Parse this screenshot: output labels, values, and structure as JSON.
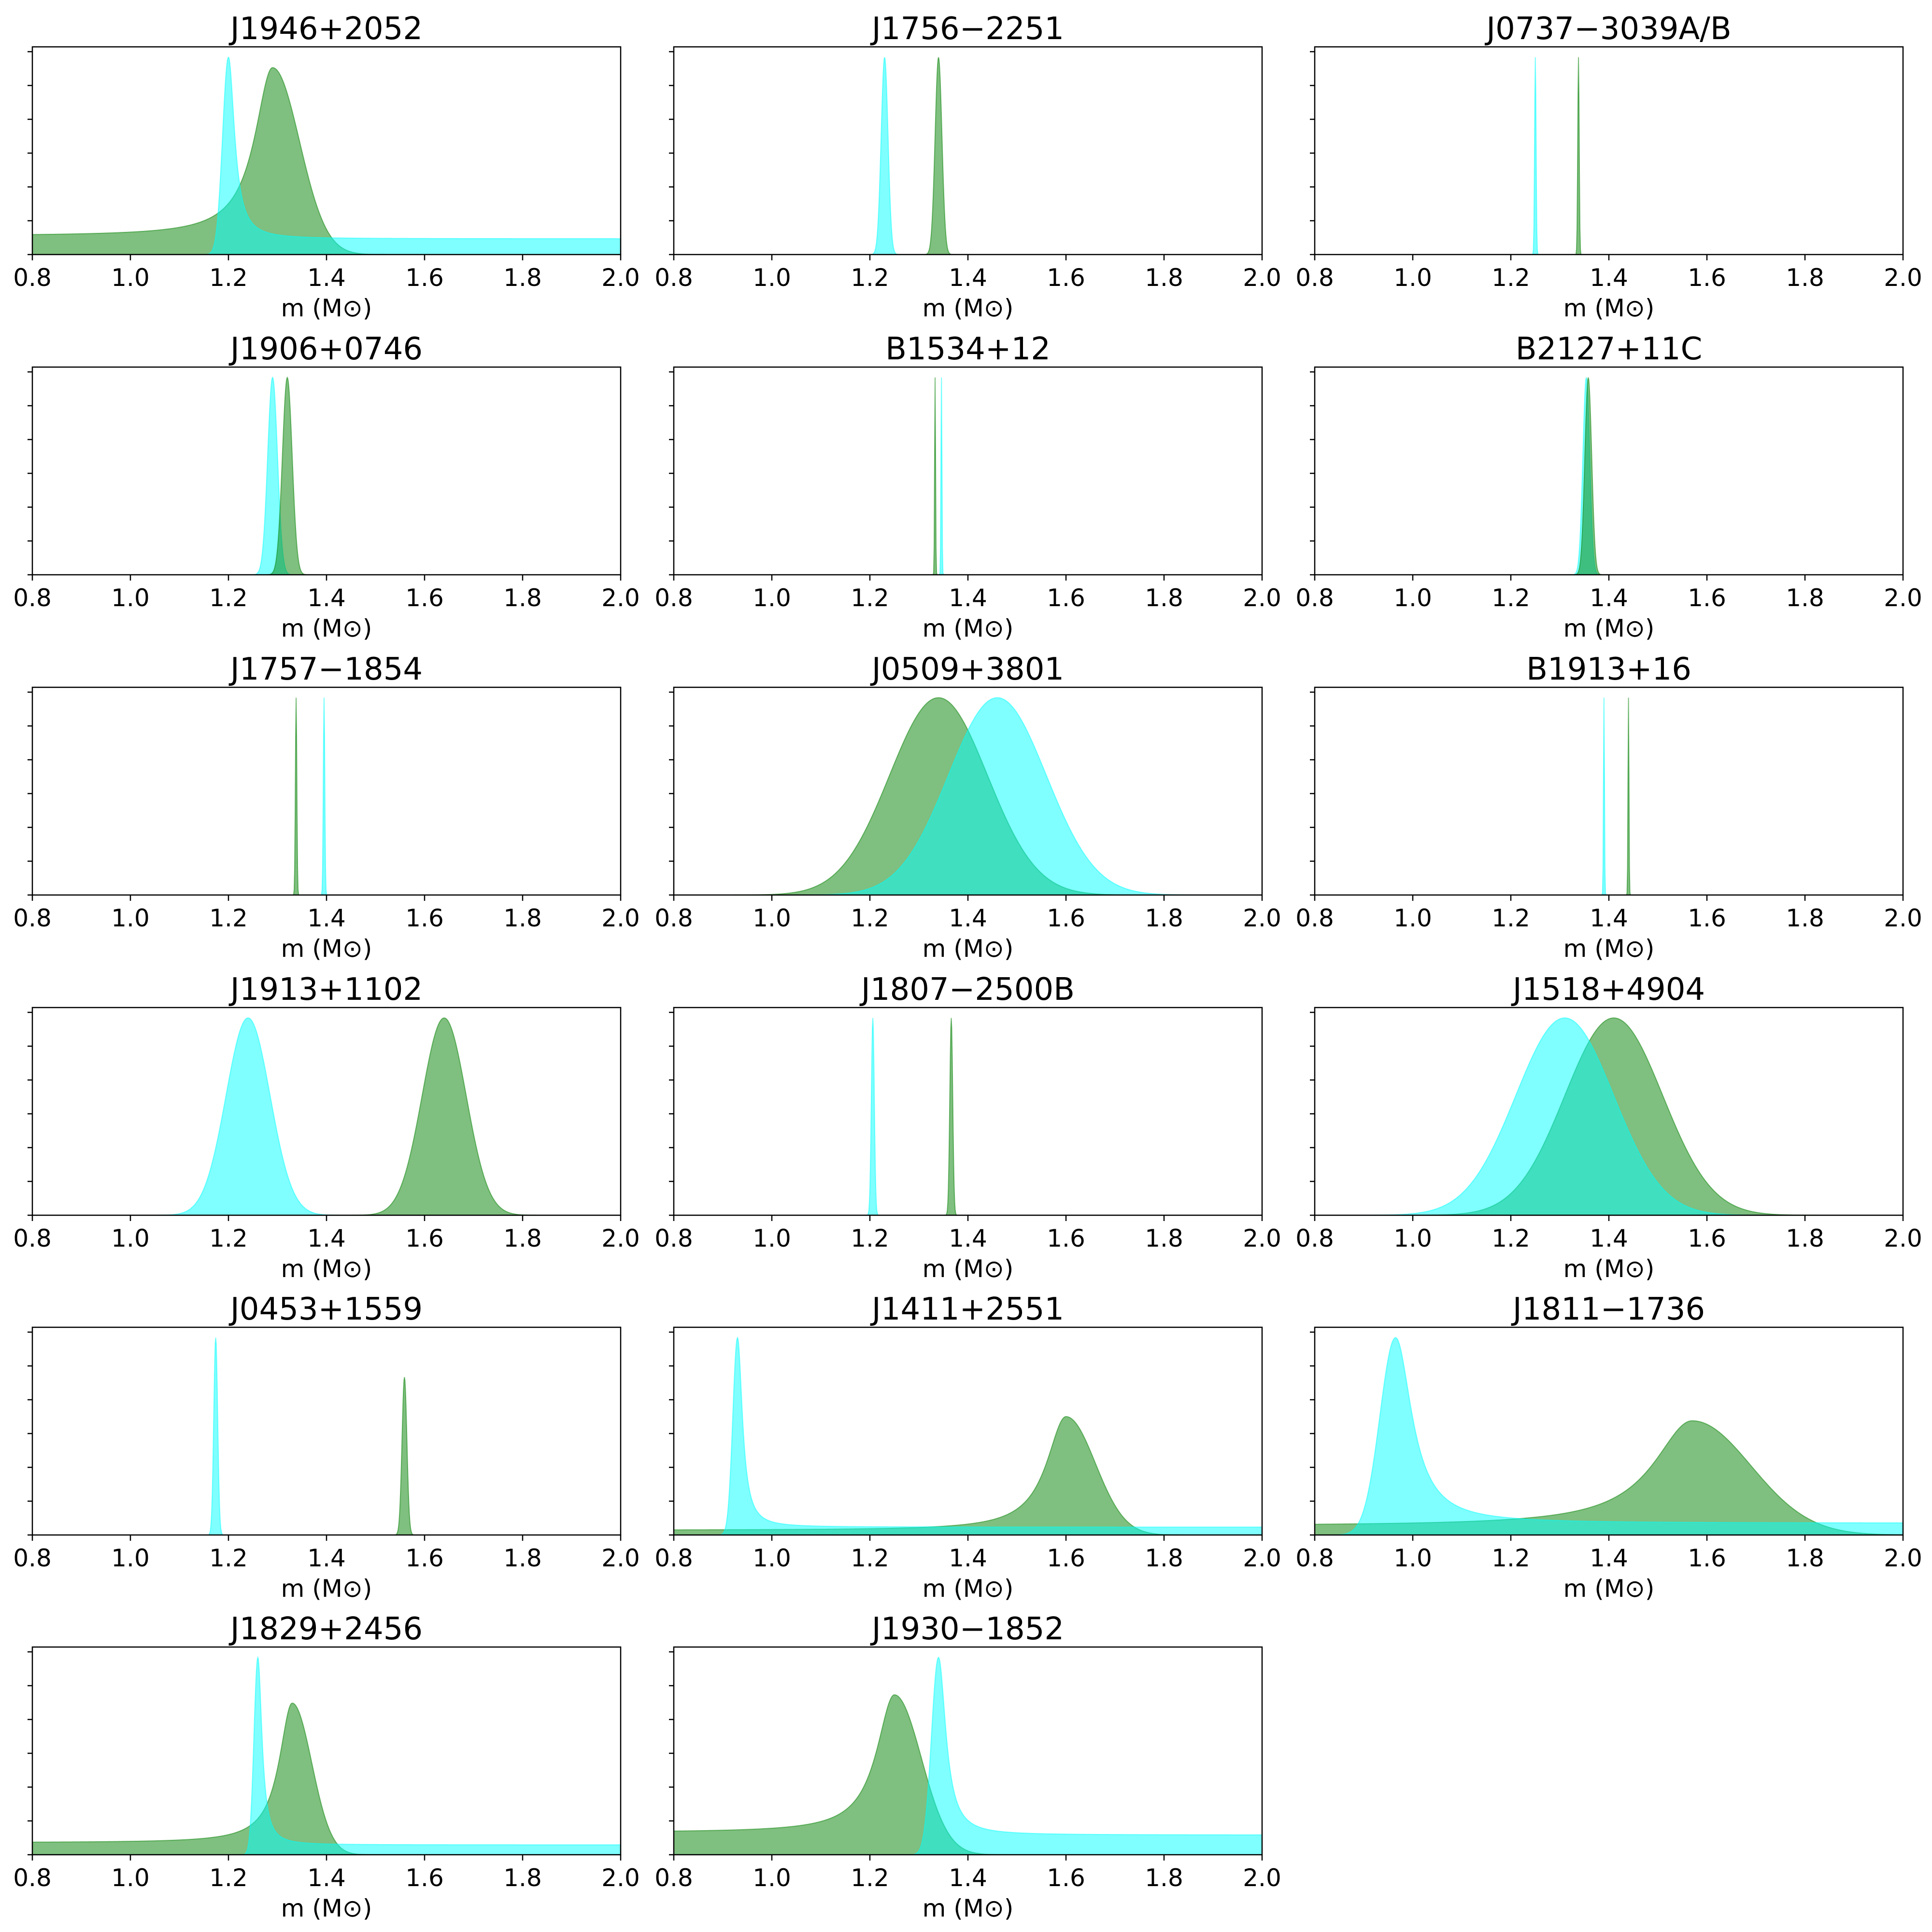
{
  "colors": {
    "companion": "#00ffff",
    "pulsar": "#008000"
  },
  "chart_data": [
    {
      "type": "area",
      "title": "J1946+2052",
      "xlabel": "m (M⊙)",
      "xlim": [
        0.8,
        2.0
      ],
      "xticks": [
        "0.8",
        "1.0",
        "1.2",
        "1.4",
        "1.6",
        "1.8",
        "2.0"
      ],
      "series": [
        {
          "color": "#008000",
          "peak_x": 1.29,
          "peak_height": 0.9,
          "width": 0.055,
          "shape": "skew-left",
          "tail": 0.1
        },
        {
          "color": "#00ffff",
          "peak_x": 1.2,
          "peak_height": 0.95,
          "width": 0.015,
          "shape": "skew-right",
          "tail": 0.08
        }
      ]
    },
    {
      "type": "area",
      "title": "J1756−2251",
      "xlabel": "m (M⊙)",
      "xlim": [
        0.8,
        2.0
      ],
      "xticks": [
        "0.8",
        "1.0",
        "1.2",
        "1.4",
        "1.6",
        "1.8",
        "2.0"
      ],
      "series": [
        {
          "color": "#00ffff",
          "peak_x": 1.23,
          "peak_height": 0.95,
          "width": 0.007,
          "shape": "gauss"
        },
        {
          "color": "#008000",
          "peak_x": 1.34,
          "peak_height": 0.95,
          "width": 0.007,
          "shape": "gauss"
        }
      ]
    },
    {
      "type": "area",
      "title": "J0737−3039A/B",
      "xlabel": "m (M⊙)",
      "xlim": [
        0.8,
        2.0
      ],
      "xticks": [
        "0.8",
        "1.0",
        "1.2",
        "1.4",
        "1.6",
        "1.8",
        "2.0"
      ],
      "series": [
        {
          "color": "#00ffff",
          "peak_x": 1.25,
          "peak_height": 0.95,
          "width": 0.0015,
          "shape": "gauss"
        },
        {
          "color": "#008000",
          "peak_x": 1.338,
          "peak_height": 0.95,
          "width": 0.0015,
          "shape": "gauss"
        }
      ]
    },
    {
      "type": "area",
      "title": "J1906+0746",
      "xlabel": "m (M⊙)",
      "xlim": [
        0.8,
        2.0
      ],
      "xticks": [
        "0.8",
        "1.0",
        "1.2",
        "1.4",
        "1.6",
        "1.8",
        "2.0"
      ],
      "series": [
        {
          "color": "#00ffff",
          "peak_x": 1.29,
          "peak_height": 0.95,
          "width": 0.01,
          "shape": "gauss"
        },
        {
          "color": "#008000",
          "peak_x": 1.32,
          "peak_height": 0.95,
          "width": 0.01,
          "shape": "gauss"
        }
      ]
    },
    {
      "type": "area",
      "title": "B1534+12",
      "xlabel": "m (M⊙)",
      "xlim": [
        0.8,
        2.0
      ],
      "xticks": [
        "0.8",
        "1.0",
        "1.2",
        "1.4",
        "1.6",
        "1.8",
        "2.0"
      ],
      "series": [
        {
          "color": "#00ffff",
          "peak_x": 1.346,
          "peak_height": 0.95,
          "width": 0.001,
          "shape": "gauss"
        },
        {
          "color": "#008000",
          "peak_x": 1.333,
          "peak_height": 0.95,
          "width": 0.001,
          "shape": "gauss"
        }
      ]
    },
    {
      "type": "area",
      "title": "B2127+11C",
      "xlabel": "m (M⊙)",
      "xlim": [
        0.8,
        2.0
      ],
      "xticks": [
        "0.8",
        "1.0",
        "1.2",
        "1.4",
        "1.6",
        "1.8",
        "2.0"
      ],
      "series": [
        {
          "color": "#00ffff",
          "peak_x": 1.354,
          "peak_height": 0.95,
          "width": 0.007,
          "shape": "gauss"
        },
        {
          "color": "#008000",
          "peak_x": 1.358,
          "peak_height": 0.95,
          "width": 0.007,
          "shape": "gauss"
        }
      ]
    },
    {
      "type": "area",
      "title": "J1757−1854",
      "xlabel": "m (M⊙)",
      "xlim": [
        0.8,
        2.0
      ],
      "xticks": [
        "0.8",
        "1.0",
        "1.2",
        "1.4",
        "1.6",
        "1.8",
        "2.0"
      ],
      "series": [
        {
          "color": "#00ffff",
          "peak_x": 1.395,
          "peak_height": 0.95,
          "width": 0.0015,
          "shape": "gauss"
        },
        {
          "color": "#008000",
          "peak_x": 1.338,
          "peak_height": 0.95,
          "width": 0.0015,
          "shape": "gauss"
        }
      ]
    },
    {
      "type": "area",
      "title": "J0509+3801",
      "xlabel": "m (M⊙)",
      "xlim": [
        0.8,
        2.0
      ],
      "xticks": [
        "0.8",
        "1.0",
        "1.2",
        "1.4",
        "1.6",
        "1.8",
        "2.0"
      ],
      "series": [
        {
          "color": "#008000",
          "peak_x": 1.34,
          "peak_height": 0.95,
          "width": 0.1,
          "shape": "gauss"
        },
        {
          "color": "#00ffff",
          "peak_x": 1.46,
          "peak_height": 0.95,
          "width": 0.1,
          "shape": "gauss"
        }
      ]
    },
    {
      "type": "area",
      "title": "B1913+16",
      "xlabel": "m (M⊙)",
      "xlim": [
        0.8,
        2.0
      ],
      "xticks": [
        "0.8",
        "1.0",
        "1.2",
        "1.4",
        "1.6",
        "1.8",
        "2.0"
      ],
      "series": [
        {
          "color": "#00ffff",
          "peak_x": 1.39,
          "peak_height": 0.95,
          "width": 0.001,
          "shape": "gauss"
        },
        {
          "color": "#008000",
          "peak_x": 1.44,
          "peak_height": 0.95,
          "width": 0.001,
          "shape": "gauss"
        }
      ]
    },
    {
      "type": "area",
      "title": "J1913+1102",
      "xlabel": "m (M⊙)",
      "xlim": [
        0.8,
        2.0
      ],
      "xticks": [
        "0.8",
        "1.0",
        "1.2",
        "1.4",
        "1.6",
        "1.8",
        "2.0"
      ],
      "series": [
        {
          "color": "#00ffff",
          "peak_x": 1.24,
          "peak_height": 0.95,
          "width": 0.045,
          "shape": "gauss"
        },
        {
          "color": "#008000",
          "peak_x": 1.64,
          "peak_height": 0.95,
          "width": 0.045,
          "shape": "gauss"
        }
      ]
    },
    {
      "type": "area",
      "title": "J1807−2500B",
      "xlabel": "m (M⊙)",
      "xlim": [
        0.8,
        2.0
      ],
      "xticks": [
        "0.8",
        "1.0",
        "1.2",
        "1.4",
        "1.6",
        "1.8",
        "2.0"
      ],
      "series": [
        {
          "color": "#00ffff",
          "peak_x": 1.206,
          "peak_height": 0.95,
          "width": 0.003,
          "shape": "gauss"
        },
        {
          "color": "#008000",
          "peak_x": 1.366,
          "peak_height": 0.95,
          "width": 0.003,
          "shape": "gauss"
        }
      ]
    },
    {
      "type": "area",
      "title": "J1518+4904",
      "xlabel": "m (M⊙)",
      "xlim": [
        0.8,
        2.0
      ],
      "xticks": [
        "0.8",
        "1.0",
        "1.2",
        "1.4",
        "1.6",
        "1.8",
        "2.0"
      ],
      "series": [
        {
          "color": "#008000",
          "peak_x": 1.41,
          "peak_height": 0.95,
          "width": 0.1,
          "shape": "gauss"
        },
        {
          "color": "#00ffff",
          "peak_x": 1.31,
          "peak_height": 0.95,
          "width": 0.1,
          "shape": "gauss"
        }
      ]
    },
    {
      "type": "area",
      "title": "J0453+1559",
      "xlabel": "m (M⊙)",
      "xlim": [
        0.8,
        2.0
      ],
      "xticks": [
        "0.8",
        "1.0",
        "1.2",
        "1.4",
        "1.6",
        "1.8",
        "2.0"
      ],
      "series": [
        {
          "color": "#00ffff",
          "peak_x": 1.174,
          "peak_height": 0.95,
          "width": 0.004,
          "shape": "gauss"
        },
        {
          "color": "#008000",
          "peak_x": 1.559,
          "peak_height": 0.76,
          "width": 0.005,
          "shape": "gauss"
        }
      ]
    },
    {
      "type": "area",
      "title": "J1411+2551",
      "xlabel": "m (M⊙)",
      "xlim": [
        0.8,
        2.0
      ],
      "xticks": [
        "0.8",
        "1.0",
        "1.2",
        "1.4",
        "1.6",
        "1.8",
        "2.0"
      ],
      "series": [
        {
          "color": "#008000",
          "peak_x": 1.6,
          "peak_height": 0.57,
          "width": 0.06,
          "shape": "skew-left",
          "tail": 0.04
        },
        {
          "color": "#00ffff",
          "peak_x": 0.93,
          "peak_height": 0.95,
          "width": 0.012,
          "shape": "skew-right",
          "tail": 0.04
        }
      ]
    },
    {
      "type": "area",
      "title": "J1811−1736",
      "xlabel": "m (M⊙)",
      "xlim": [
        0.8,
        2.0
      ],
      "xticks": [
        "0.8",
        "1.0",
        "1.2",
        "1.4",
        "1.6",
        "1.8",
        "2.0"
      ],
      "series": [
        {
          "color": "#008000",
          "peak_x": 1.57,
          "peak_height": 0.55,
          "width": 0.12,
          "shape": "skew-left",
          "tail": 0.08
        },
        {
          "color": "#00ffff",
          "peak_x": 0.965,
          "peak_height": 0.95,
          "width": 0.04,
          "shape": "skew-right",
          "tail": 0.06
        }
      ]
    },
    {
      "type": "area",
      "title": "J1829+2456",
      "xlabel": "m (M⊙)",
      "xlim": [
        0.8,
        2.0
      ],
      "xticks": [
        "0.8",
        "1.0",
        "1.2",
        "1.4",
        "1.6",
        "1.8",
        "2.0"
      ],
      "series": [
        {
          "color": "#008000",
          "peak_x": 1.33,
          "peak_height": 0.73,
          "width": 0.04,
          "shape": "skew-left",
          "tail": 0.08
        },
        {
          "color": "#00ffff",
          "peak_x": 1.26,
          "peak_height": 0.95,
          "width": 0.01,
          "shape": "skew-right",
          "tail": 0.05
        }
      ]
    },
    {
      "type": "area",
      "title": "J1930−1852",
      "xlabel": "m (M⊙)",
      "xlim": [
        0.8,
        2.0
      ],
      "xticks": [
        "0.8",
        "1.0",
        "1.2",
        "1.4",
        "1.6",
        "1.8",
        "2.0"
      ],
      "series": [
        {
          "color": "#008000",
          "peak_x": 1.25,
          "peak_height": 0.77,
          "width": 0.055,
          "shape": "skew-left",
          "tail": 0.14
        },
        {
          "color": "#00ffff",
          "peak_x": 1.34,
          "peak_height": 0.95,
          "width": 0.018,
          "shape": "skew-right",
          "tail": 0.1
        }
      ]
    }
  ]
}
